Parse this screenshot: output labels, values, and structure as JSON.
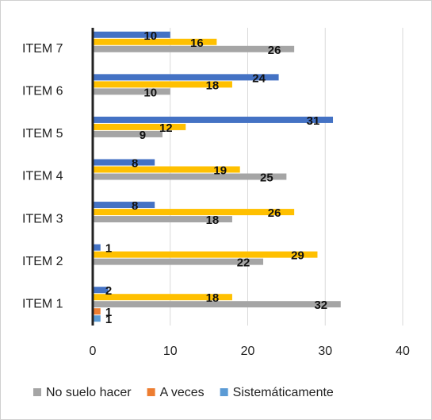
{
  "chart_data": {
    "type": "hbar",
    "categories": [
      "ITEM 1",
      "ITEM 2",
      "ITEM 3",
      "ITEM 4",
      "ITEM 5",
      "ITEM 6",
      "ITEM 7"
    ],
    "series": [
      {
        "name": "No suelo hacer",
        "color": "#a5a5a5",
        "values": [
          32,
          22,
          18,
          25,
          9,
          10,
          26
        ]
      },
      {
        "name": "A veces",
        "color": "#ed7d31",
        "values": [
          1,
          null,
          null,
          null,
          null,
          null,
          null
        ]
      },
      {
        "name": "Sistemáticamente",
        "color": "#5b9bd5",
        "values": [
          1,
          null,
          null,
          null,
          null,
          null,
          null
        ]
      },
      {
        "color": "#ffc000",
        "values": [
          18,
          29,
          26,
          19,
          12,
          18,
          16
        ]
      },
      {
        "color": "#4472c4",
        "values": [
          2,
          1,
          8,
          8,
          31,
          24,
          10
        ]
      }
    ],
    "xlim": [
      0,
      40
    ],
    "xticks": [
      0,
      10,
      20,
      30,
      40
    ],
    "grid": true,
    "legend": "bottom"
  }
}
